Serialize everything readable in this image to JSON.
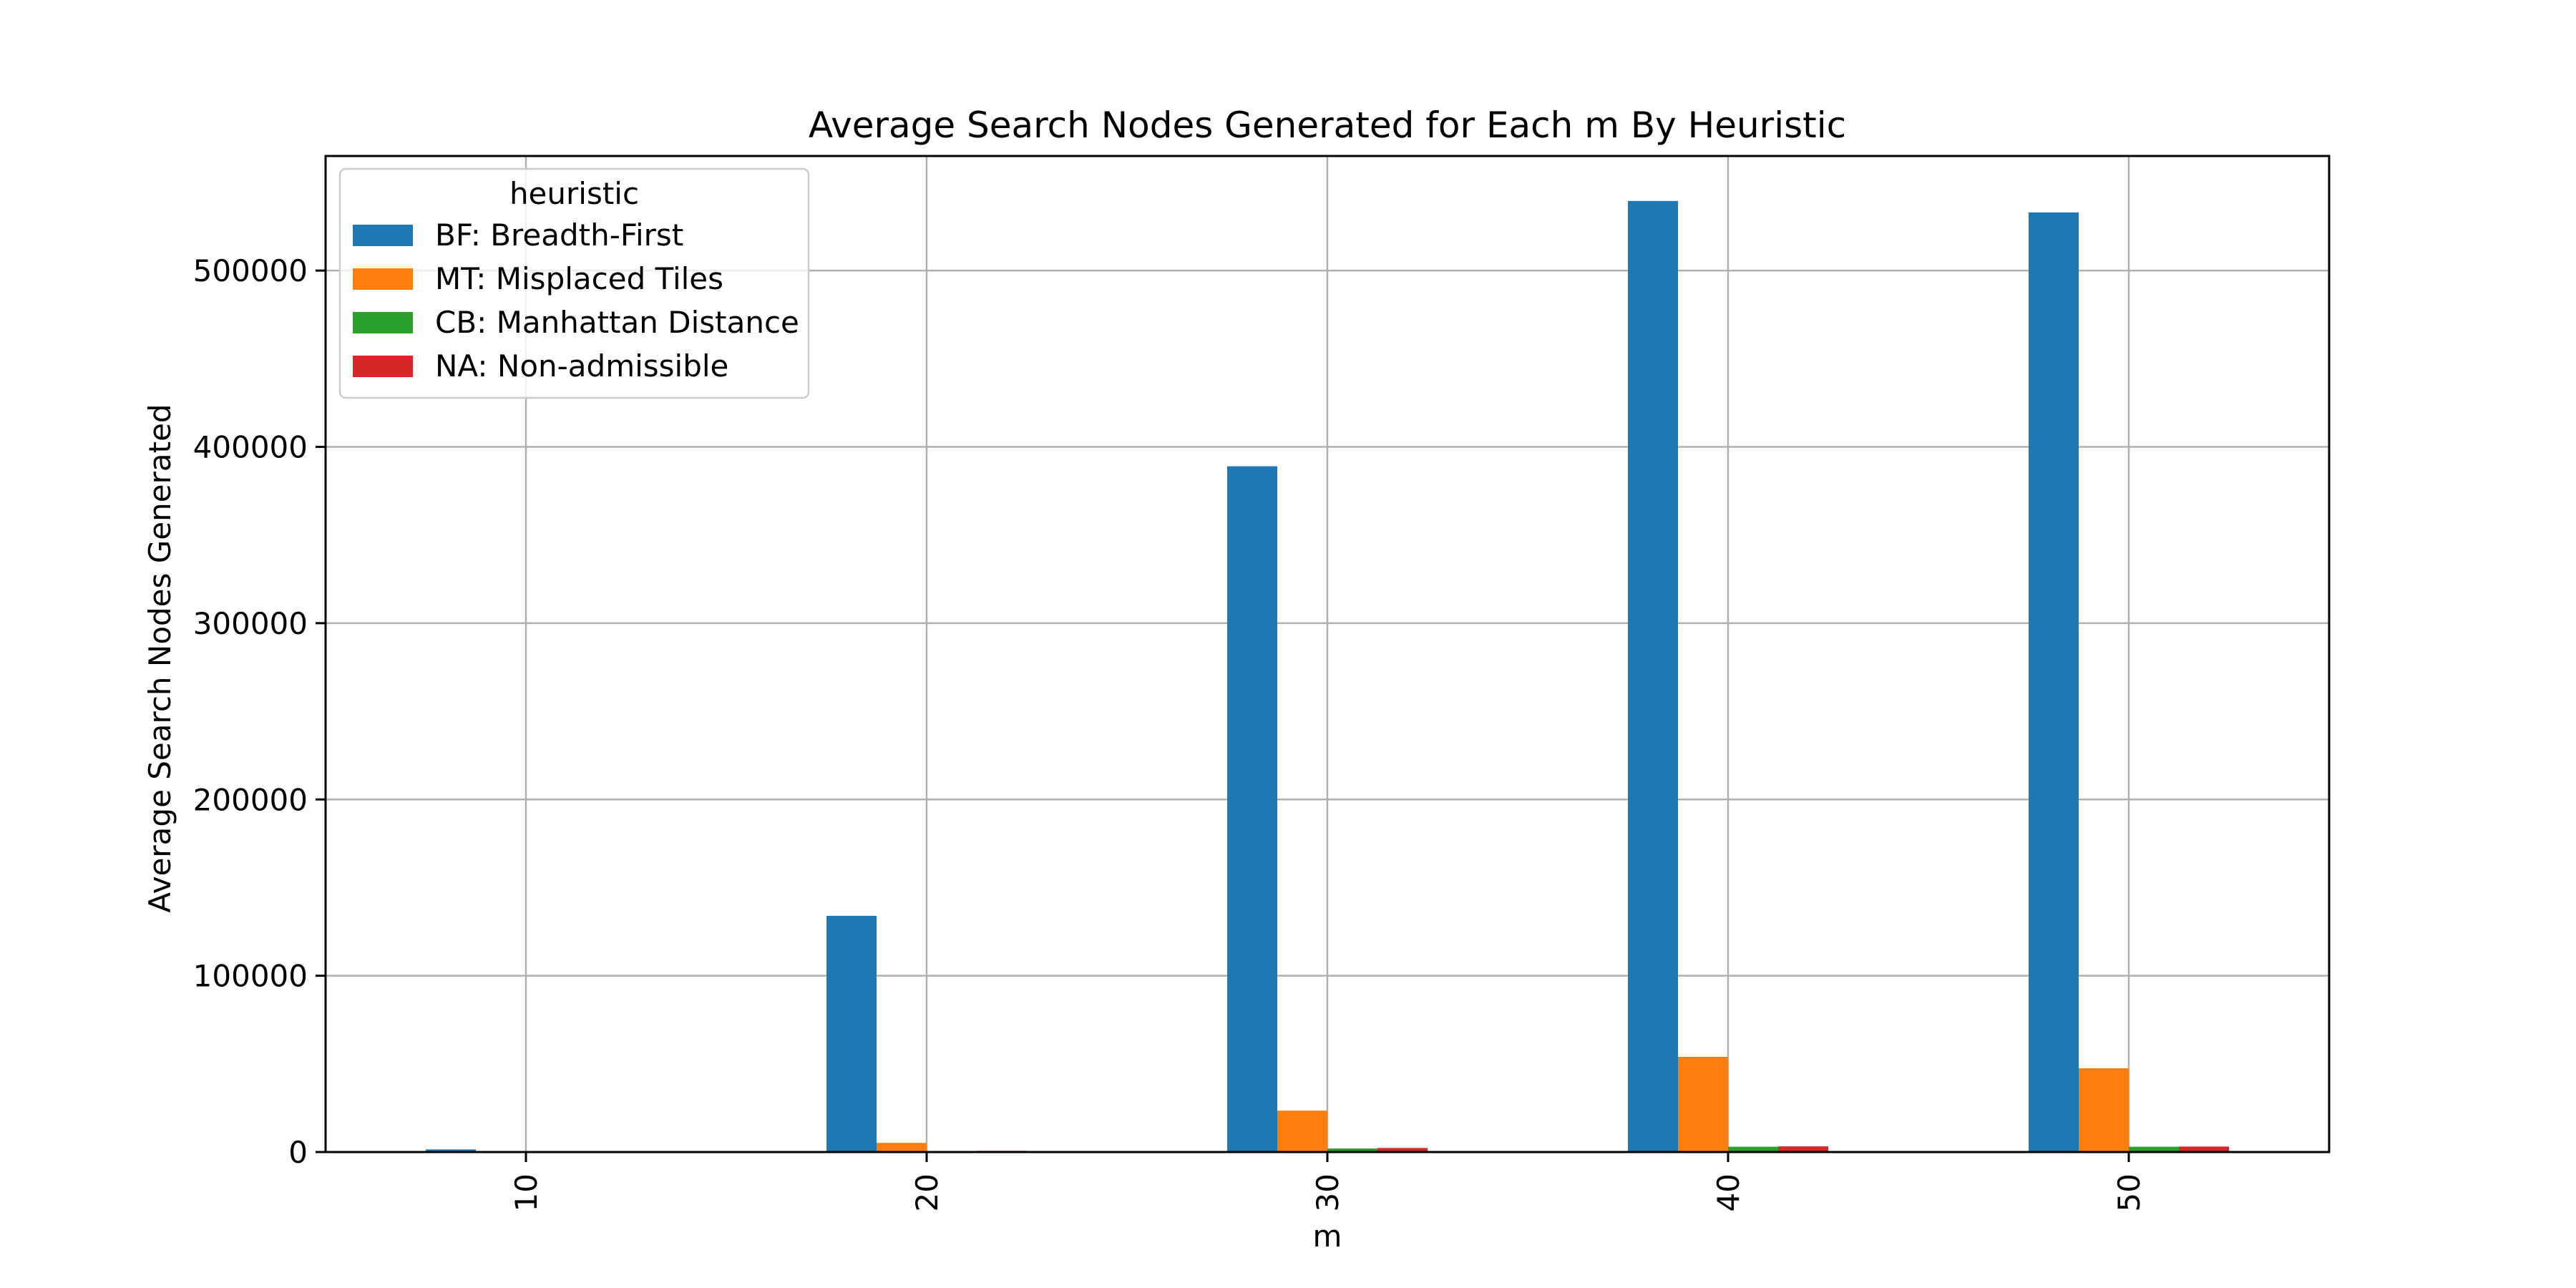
{
  "chart_data": {
    "type": "bar",
    "title": "Average Search Nodes Generated for Each m By Heuristic",
    "xlabel": "m",
    "ylabel": "Average Search Nodes Generated",
    "categories": [
      "10",
      "20",
      "30",
      "40",
      "50"
    ],
    "ylim": [
      0,
      565000
    ],
    "yticks": [
      0,
      100000,
      200000,
      300000,
      400000,
      500000
    ],
    "ytick_labels": [
      "0",
      "100000",
      "200000",
      "300000",
      "400000",
      "500000"
    ],
    "grid": true,
    "legend": {
      "title": "heuristic",
      "position": "top-left"
    },
    "series": [
      {
        "name": "BF: Breadth-First",
        "color": "#1f77b4",
        "values": [
          1500,
          134000,
          389000,
          539500,
          533000
        ]
      },
      {
        "name": "MT: Misplaced Tiles",
        "color": "#ff7f0e",
        "values": [
          60,
          5200,
          23500,
          54000,
          47500
        ]
      },
      {
        "name": "CB: Manhattan Distance",
        "color": "#2ca02c",
        "values": [
          20,
          500,
          2000,
          3000,
          3000
        ]
      },
      {
        "name": "NA: Non-admissible",
        "color": "#d62728",
        "values": [
          20,
          700,
          2300,
          3200,
          3100
        ]
      }
    ]
  }
}
